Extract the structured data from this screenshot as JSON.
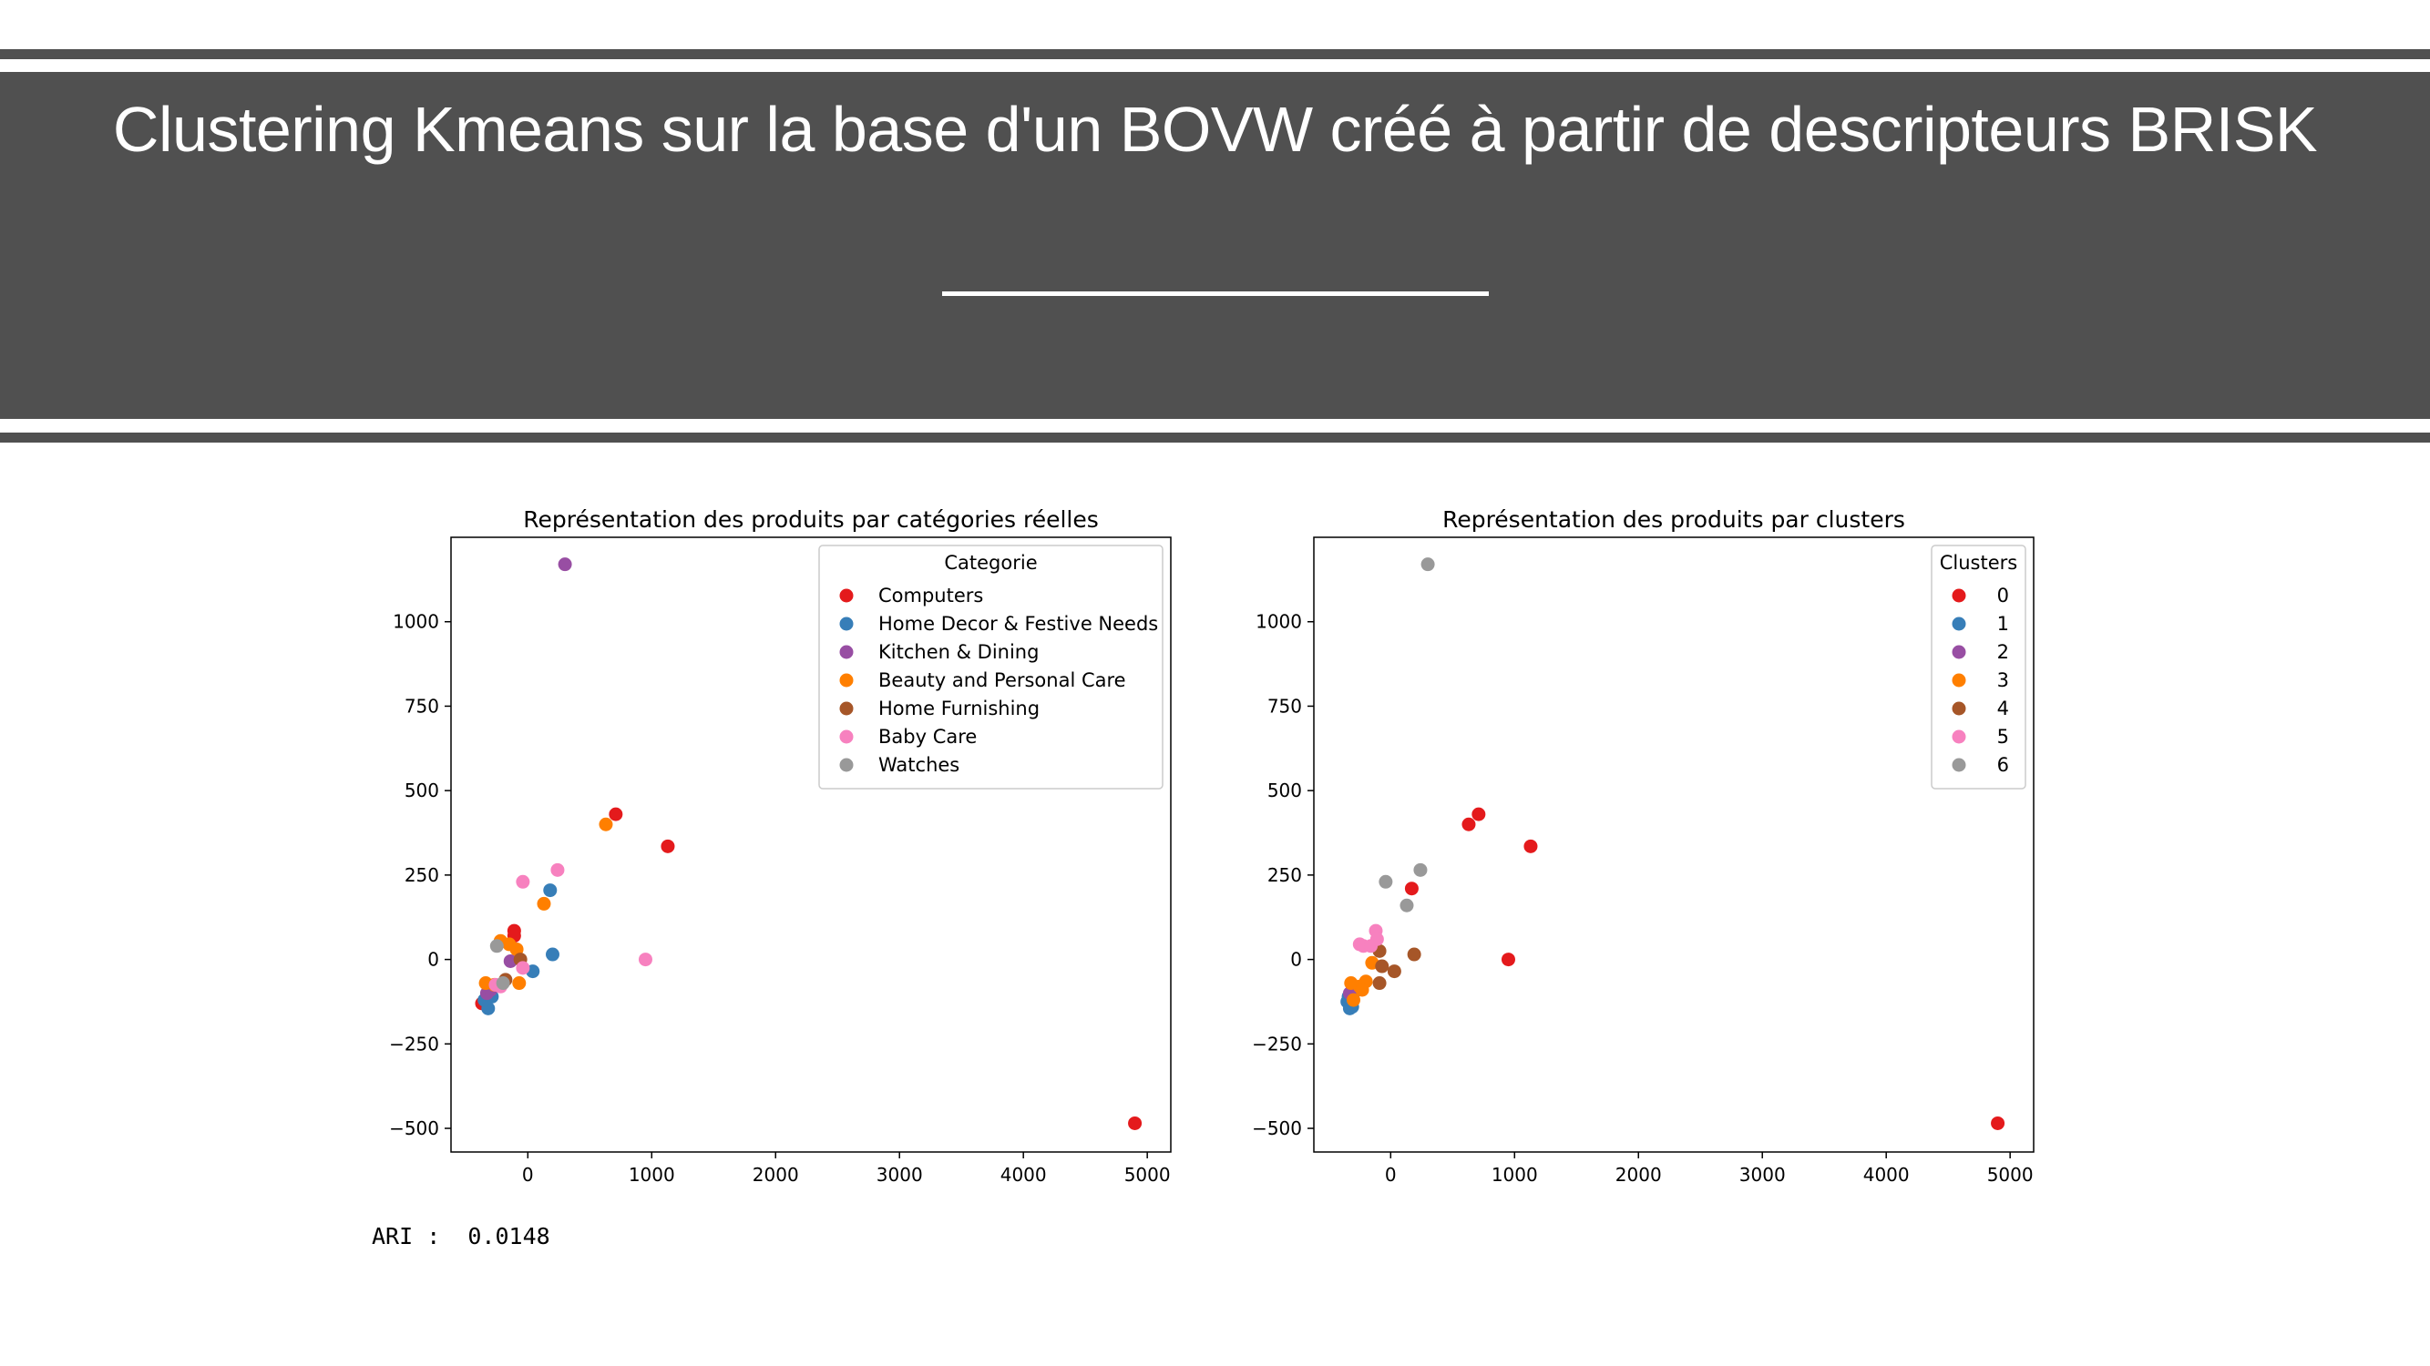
{
  "slide": {
    "title": "Clustering Kmeans sur la base d'un BOVW créé à partir de descripteurs BRISK"
  },
  "ari": {
    "label": "ARI :",
    "value": "0.0148"
  },
  "chart_data": [
    {
      "type": "scatter",
      "title": "Représentation des produits par catégories réelles",
      "xlabel": "",
      "ylabel": "",
      "xlim": [
        -620,
        5190
      ],
      "ylim": [
        -570,
        1250
      ],
      "xticks": [
        0,
        1000,
        2000,
        3000,
        4000,
        5000
      ],
      "yticks": [
        -500,
        -250,
        0,
        250,
        500,
        750,
        1000
      ],
      "legend": {
        "title": "Categorie",
        "placement": "upper right"
      },
      "series": [
        {
          "name": "Computers",
          "color": "#e41a1c",
          "points": [
            [
              710,
              430
            ],
            [
              1130,
              335
            ],
            [
              4900,
              -485
            ],
            [
              -110,
              85
            ],
            [
              -110,
              70
            ],
            [
              -370,
              -130
            ],
            [
              -330,
              -115
            ]
          ]
        },
        {
          "name": "Home Decor & Festive Needs",
          "color": "#377eb8",
          "points": [
            [
              180,
              205
            ],
            [
              200,
              15
            ],
            [
              40,
              -35
            ],
            [
              -320,
              -145
            ],
            [
              -350,
              -120
            ],
            [
              -290,
              -110
            ]
          ]
        },
        {
          "name": "Kitchen & Dining",
          "color": "#984ea3",
          "points": [
            [
              300,
              1170
            ],
            [
              -140,
              -5
            ],
            [
              -330,
              -100
            ],
            [
              -300,
              -90
            ]
          ]
        },
        {
          "name": "Beauty and Personal Care",
          "color": "#ff7f00",
          "points": [
            [
              630,
              400
            ],
            [
              130,
              165
            ],
            [
              -90,
              30
            ],
            [
              -220,
              55
            ],
            [
              -70,
              -70
            ],
            [
              -340,
              -70
            ],
            [
              -270,
              -75
            ],
            [
              -150,
              45
            ]
          ]
        },
        {
          "name": "Home Furnishing",
          "color": "#a65628",
          "points": [
            [
              -60,
              0
            ],
            [
              -180,
              -60
            ]
          ]
        },
        {
          "name": "Baby Care",
          "color": "#f781bf",
          "points": [
            [
              240,
              265
            ],
            [
              -40,
              230
            ],
            [
              950,
              0
            ],
            [
              -40,
              -25
            ],
            [
              -260,
              -75
            ],
            [
              -220,
              -80
            ]
          ]
        },
        {
          "name": "Watches",
          "color": "#999999",
          "points": [
            [
              -250,
              40
            ],
            [
              -200,
              -70
            ]
          ]
        }
      ]
    },
    {
      "type": "scatter",
      "title": "Représentation des produits par clusters",
      "xlabel": "",
      "ylabel": "",
      "xlim": [
        -620,
        5190
      ],
      "ylim": [
        -570,
        1250
      ],
      "xticks": [
        0,
        1000,
        2000,
        3000,
        4000,
        5000
      ],
      "yticks": [
        -500,
        -250,
        0,
        250,
        500,
        750,
        1000
      ],
      "legend": {
        "title": "Clusters",
        "placement": "upper right"
      },
      "series": [
        {
          "name": "0",
          "color": "#e41a1c",
          "points": [
            [
              710,
              430
            ],
            [
              630,
              400
            ],
            [
              1130,
              335
            ],
            [
              170,
              210
            ],
            [
              950,
              0
            ],
            [
              4900,
              -485
            ]
          ]
        },
        {
          "name": "1",
          "color": "#377eb8",
          "points": [
            [
              -350,
              -125
            ],
            [
              -330,
              -145
            ],
            [
              -310,
              -140
            ],
            [
              -340,
              -110
            ],
            [
              -300,
              -100
            ]
          ]
        },
        {
          "name": "2",
          "color": "#984ea3",
          "points": [
            [
              -330,
              -100
            ]
          ]
        },
        {
          "name": "3",
          "color": "#ff7f00",
          "points": [
            [
              -150,
              -10
            ],
            [
              -200,
              -65
            ],
            [
              -250,
              -80
            ],
            [
              -320,
              -70
            ],
            [
              -300,
              -120
            ],
            [
              -230,
              -90
            ]
          ]
        },
        {
          "name": "4",
          "color": "#a65628",
          "points": [
            [
              -90,
              25
            ],
            [
              -70,
              -20
            ],
            [
              30,
              -35
            ],
            [
              190,
              15
            ],
            [
              -90,
              -70
            ]
          ]
        },
        {
          "name": "5",
          "color": "#f781bf",
          "points": [
            [
              -120,
              85
            ],
            [
              -250,
              45
            ],
            [
              -220,
              40
            ],
            [
              -160,
              40
            ],
            [
              -110,
              60
            ]
          ]
        },
        {
          "name": "6",
          "color": "#999999",
          "points": [
            [
              300,
              1170
            ],
            [
              -40,
              230
            ],
            [
              240,
              265
            ],
            [
              130,
              160
            ]
          ]
        }
      ]
    }
  ]
}
